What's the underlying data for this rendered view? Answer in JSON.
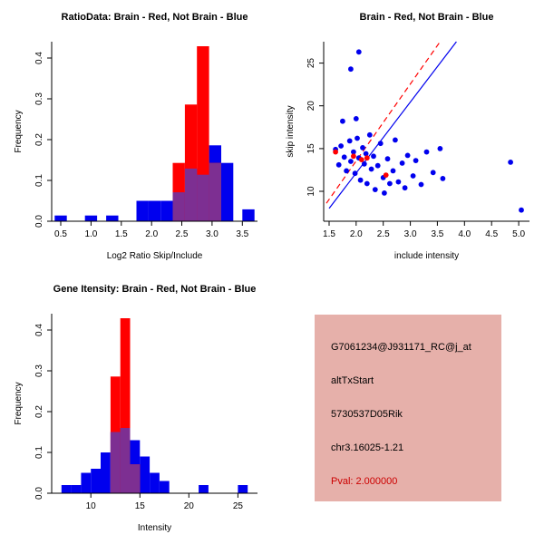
{
  "colors": {
    "red": "#FF0000",
    "blue": "#0000EE",
    "overlap": "#7D2F92",
    "axis": "#000000",
    "info_bg": "#E6B0AA",
    "pval": "#CC0000"
  },
  "chart_data": [
    {
      "id": "ratio-histogram",
      "type": "bar",
      "title": "RatioData: Brain - Red, Not Brain - Blue",
      "xlabel": "Log2 Ratio Skip/Include",
      "ylabel": "Frequency",
      "xlim": [
        0.35,
        3.75
      ],
      "ylim": [
        0,
        0.44
      ],
      "xticks": [
        0.5,
        1.0,
        1.5,
        2.0,
        2.5,
        3.0,
        3.5
      ],
      "xtick_labels": [
        "0.5",
        "1.0",
        "1.5",
        "2.0",
        "2.5",
        "3.0",
        "3.5"
      ],
      "yticks": [
        0.0,
        0.1,
        0.2,
        0.3,
        0.4
      ],
      "ytick_labels": [
        "0.0",
        "0.1",
        "0.2",
        "0.3",
        "0.4"
      ],
      "bin_width": 0.2,
      "legend_note": "blue = Not Brain, red = Brain, purple = overlap",
      "series": [
        {
          "name": "Not Brain",
          "color_key": "blue",
          "bins": [
            [
              0.4,
              0.014
            ],
            [
              0.9,
              0.014
            ],
            [
              1.25,
              0.014
            ],
            [
              1.75,
              0.05
            ],
            [
              1.95,
              0.05
            ],
            [
              2.15,
              0.05
            ],
            [
              2.35,
              0.071
            ],
            [
              2.55,
              0.129
            ],
            [
              2.75,
              0.114
            ],
            [
              2.95,
              0.186
            ],
            [
              3.15,
              0.143
            ],
            [
              3.5,
              0.029
            ]
          ]
        },
        {
          "name": "Brain",
          "color_key": "red",
          "bins": [
            [
              2.35,
              0.143
            ],
            [
              2.55,
              0.286
            ],
            [
              2.75,
              0.429
            ],
            [
              2.95,
              0.143
            ]
          ]
        }
      ]
    },
    {
      "id": "intensity-scatter",
      "type": "scatter",
      "title": "Brain - Red, Not Brain - Blue",
      "xlabel": "include intensity",
      "ylabel": "skip intensity",
      "xlim": [
        1.4,
        5.2
      ],
      "ylim": [
        6.5,
        27.5
      ],
      "xticks": [
        1.5,
        2.0,
        2.5,
        3.0,
        3.5,
        4.0,
        4.5,
        5.0
      ],
      "xtick_labels": [
        "1.5",
        "2.0",
        "2.5",
        "3.0",
        "3.5",
        "4.0",
        "4.5",
        "5.0"
      ],
      "yticks": [
        10,
        15,
        20,
        25
      ],
      "ytick_labels": [
        "10",
        "15",
        "20",
        "25"
      ],
      "series": [
        {
          "name": "Not Brain",
          "color_key": "blue",
          "points": [
            [
              2.05,
              26.3
            ],
            [
              1.9,
              24.3
            ],
            [
              1.75,
              18.2
            ],
            [
              2.0,
              18.5
            ],
            [
              1.62,
              14.9
            ],
            [
              1.68,
              13.1
            ],
            [
              1.72,
              15.3
            ],
            [
              1.78,
              14.0
            ],
            [
              1.82,
              12.4
            ],
            [
              1.88,
              15.9
            ],
            [
              1.9,
              13.5
            ],
            [
              1.95,
              14.6
            ],
            [
              1.98,
              12.1
            ],
            [
              2.02,
              16.2
            ],
            [
              2.05,
              13.9
            ],
            [
              2.08,
              11.3
            ],
            [
              2.12,
              15.1
            ],
            [
              2.15,
              13.2
            ],
            [
              2.18,
              14.4
            ],
            [
              2.2,
              10.9
            ],
            [
              2.25,
              16.6
            ],
            [
              2.28,
              12.6
            ],
            [
              2.32,
              14.1
            ],
            [
              2.35,
              10.2
            ],
            [
              2.4,
              13.0
            ],
            [
              2.45,
              15.6
            ],
            [
              2.5,
              11.6
            ],
            [
              2.52,
              9.8
            ],
            [
              2.58,
              13.8
            ],
            [
              2.62,
              10.9
            ],
            [
              2.68,
              12.4
            ],
            [
              2.72,
              16.0
            ],
            [
              2.78,
              11.1
            ],
            [
              2.85,
              13.3
            ],
            [
              2.9,
              10.4
            ],
            [
              2.95,
              14.2
            ],
            [
              3.05,
              11.8
            ],
            [
              3.1,
              13.6
            ],
            [
              3.2,
              10.8
            ],
            [
              3.3,
              14.6
            ],
            [
              3.42,
              12.2
            ],
            [
              3.55,
              15.0
            ],
            [
              3.6,
              11.5
            ],
            [
              4.85,
              13.4
            ],
            [
              5.05,
              7.8
            ]
          ]
        },
        {
          "name": "Brain",
          "color_key": "red",
          "points": [
            [
              1.62,
              14.6
            ],
            [
              1.95,
              14.1
            ],
            [
              2.1,
              13.7
            ],
            [
              2.2,
              13.9
            ],
            [
              2.55,
              11.9
            ]
          ]
        }
      ],
      "lines": [
        {
          "name": "brain-fit-line",
          "color_key": "red",
          "dashed": true,
          "x1": 1.45,
          "y1": 8.6,
          "x2": 3.55,
          "y2": 27.5
        },
        {
          "name": "notbrain-fit-line",
          "color_key": "blue",
          "dashed": false,
          "x1": 1.5,
          "y1": 8.0,
          "x2": 3.85,
          "y2": 27.5
        }
      ]
    },
    {
      "id": "gene-intensity-histogram",
      "type": "bar",
      "title": "Gene Itensity: Brain - Red, Not Brain - Blue",
      "xlabel": "Intensity",
      "ylabel": "Frequency",
      "xlim": [
        6,
        27
      ],
      "ylim": [
        0,
        0.44
      ],
      "xticks": [
        10,
        15,
        20,
        25
      ],
      "xtick_labels": [
        "10",
        "15",
        "20",
        "25"
      ],
      "yticks": [
        0.0,
        0.1,
        0.2,
        0.3,
        0.4
      ],
      "ytick_labels": [
        "0.0",
        "0.1",
        "0.2",
        "0.3",
        "0.4"
      ],
      "bin_width": 1,
      "legend_note": "blue = Not Brain, red = Brain, purple = overlap",
      "series": [
        {
          "name": "Not Brain",
          "color_key": "blue",
          "bins": [
            [
              7,
              0.02
            ],
            [
              8,
              0.02
            ],
            [
              9,
              0.05
            ],
            [
              10,
              0.06
            ],
            [
              11,
              0.1
            ],
            [
              12,
              0.15
            ],
            [
              13,
              0.16
            ],
            [
              14,
              0.13
            ],
            [
              15,
              0.09
            ],
            [
              16,
              0.05
            ],
            [
              17,
              0.03
            ],
            [
              21,
              0.02
            ],
            [
              25,
              0.02
            ]
          ]
        },
        {
          "name": "Brain",
          "color_key": "red",
          "bins": [
            [
              12,
              0.286
            ],
            [
              13,
              0.429
            ],
            [
              14,
              0.071
            ]
          ]
        }
      ]
    }
  ],
  "info_panel": {
    "probe_id": "G7061234@J931171_RC@j_at",
    "event_type": "altTxStart",
    "gene_symbol": "5730537D05Rik",
    "location": "chr3.16025-1.21",
    "pval": "Pval: 2.000000"
  }
}
